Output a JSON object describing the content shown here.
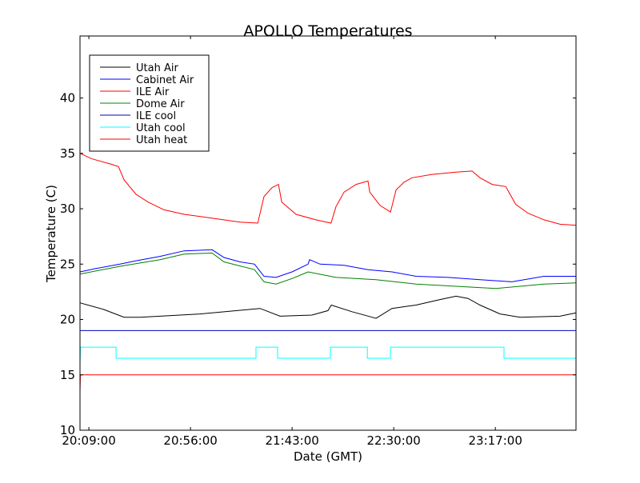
{
  "chart_data": {
    "type": "line",
    "title": "APOLLO Temperatures",
    "xlabel": "Date (GMT)",
    "ylabel": "Temperature (C)",
    "x_unit": "minutes since 20:09:00",
    "xlim": [
      -4.1,
      225.3
    ],
    "ylim": [
      10,
      45.6
    ],
    "xticks": [
      {
        "value": 0,
        "label": "20:09:00"
      },
      {
        "value": 47,
        "label": "20:56:00"
      },
      {
        "value": 94,
        "label": "21:43:00"
      },
      {
        "value": 141,
        "label": "22:30:00"
      },
      {
        "value": 188,
        "label": "23:17:00"
      }
    ],
    "yticks": [
      {
        "value": 10,
        "label": "10"
      },
      {
        "value": 15,
        "label": "15"
      },
      {
        "value": 20,
        "label": "20"
      },
      {
        "value": 25,
        "label": "25"
      },
      {
        "value": 30,
        "label": "30"
      },
      {
        "value": 35,
        "label": "35"
      },
      {
        "value": 40,
        "label": "40"
      }
    ],
    "grid": false,
    "legend_position": "top-left",
    "series": [
      {
        "name": "Utah Air",
        "color": "#000000",
        "points": [
          [
            -4.1,
            21.5
          ],
          [
            7,
            20.9
          ],
          [
            16.3,
            20.2
          ],
          [
            23.7,
            20.2
          ],
          [
            51.4,
            20.5
          ],
          [
            79.2,
            21.0
          ],
          [
            88.4,
            20.3
          ],
          [
            103.2,
            20.4
          ],
          [
            110.6,
            20.8
          ],
          [
            112.1,
            21.3
          ],
          [
            121.7,
            20.7
          ],
          [
            131,
            20.2
          ],
          [
            132.8,
            20.1
          ],
          [
            140.2,
            21.0
          ],
          [
            151.3,
            21.3
          ],
          [
            162.4,
            21.8
          ],
          [
            169.8,
            22.1
          ],
          [
            175.4,
            21.9
          ],
          [
            180.9,
            21.3
          ],
          [
            190.2,
            20.5
          ],
          [
            199.4,
            20.2
          ],
          [
            217.9,
            20.3
          ],
          [
            225.3,
            20.6
          ]
        ]
      },
      {
        "name": "Cabinet Air",
        "color": "#0000ff",
        "points": [
          [
            -4.1,
            24.3
          ],
          [
            3.3,
            24.6
          ],
          [
            14.4,
            25.0
          ],
          [
            21.8,
            25.3
          ],
          [
            32.9,
            25.7
          ],
          [
            44,
            26.2
          ],
          [
            57,
            26.3
          ],
          [
            62.5,
            25.6
          ],
          [
            69.9,
            25.2
          ],
          [
            76.6,
            25.0
          ],
          [
            81,
            23.9
          ],
          [
            86.6,
            23.8
          ],
          [
            94,
            24.3
          ],
          [
            101.4,
            25.0
          ],
          [
            102.1,
            25.4
          ],
          [
            106.9,
            25.0
          ],
          [
            118,
            24.9
          ],
          [
            129.1,
            24.5
          ],
          [
            140.2,
            24.3
          ],
          [
            151.3,
            23.9
          ],
          [
            166.1,
            23.8
          ],
          [
            180.9,
            23.6
          ],
          [
            195.7,
            23.4
          ],
          [
            210.5,
            23.9
          ],
          [
            225.3,
            23.9
          ]
        ]
      },
      {
        "name": "ILE Air",
        "color": "#ff0000",
        "points": [
          [
            -4.1,
            13.5
          ],
          [
            -3.9,
            15
          ],
          [
            225.3,
            15
          ]
        ]
      },
      {
        "name": "Dome Air",
        "color": "#008000",
        "points": [
          [
            -4.1,
            24.1
          ],
          [
            14.4,
            24.8
          ],
          [
            32.9,
            25.4
          ],
          [
            44,
            25.9
          ],
          [
            57,
            26.0
          ],
          [
            62.5,
            25.2
          ],
          [
            76.6,
            24.5
          ],
          [
            81,
            23.4
          ],
          [
            86.6,
            23.2
          ],
          [
            94,
            23.7
          ],
          [
            101.4,
            24.3
          ],
          [
            114.3,
            23.8
          ],
          [
            132.8,
            23.6
          ],
          [
            151.3,
            23.2
          ],
          [
            169.8,
            23.0
          ],
          [
            188.3,
            22.8
          ],
          [
            210.5,
            23.2
          ],
          [
            225.3,
            23.3
          ]
        ]
      },
      {
        "name": "ILE cool",
        "color": "#0000bf",
        "points": [
          [
            -4.1,
            19
          ],
          [
            225.3,
            19
          ]
        ]
      },
      {
        "name": "Utah cool",
        "color": "#00ffff",
        "points": [
          [
            -4.1,
            16
          ],
          [
            -3.9,
            17.5
          ],
          [
            12.6,
            17.5
          ],
          [
            12.6,
            16.5
          ],
          [
            77.3,
            16.5
          ],
          [
            77.3,
            17.5
          ],
          [
            87.3,
            17.5
          ],
          [
            87.3,
            16.5
          ],
          [
            111.7,
            16.5
          ],
          [
            111.7,
            17.5
          ],
          [
            128.8,
            17.5
          ],
          [
            128.8,
            16.5
          ],
          [
            139.5,
            16.5
          ],
          [
            139.5,
            17.5
          ],
          [
            192,
            17.5
          ],
          [
            192,
            16.5
          ],
          [
            225.3,
            16.5
          ]
        ]
      },
      {
        "name": "Utah heat",
        "color": "#ff0000",
        "points": [
          [
            -4.1,
            35
          ],
          [
            1.5,
            34.5
          ],
          [
            10.7,
            34
          ],
          [
            13.7,
            33.8
          ],
          [
            16.3,
            32.6
          ],
          [
            21.8,
            31.3
          ],
          [
            27.4,
            30.6
          ],
          [
            34.8,
            29.9
          ],
          [
            44,
            29.5
          ],
          [
            55.1,
            29.2
          ],
          [
            69.9,
            28.8
          ],
          [
            78.1,
            28.7
          ],
          [
            81,
            31.1
          ],
          [
            84.7,
            31.9
          ],
          [
            87.7,
            32.2
          ],
          [
            89.2,
            30.6
          ],
          [
            95.8,
            29.5
          ],
          [
            105,
            29.0
          ],
          [
            112,
            28.7
          ],
          [
            114.3,
            30.2
          ],
          [
            118,
            31.5
          ],
          [
            123.6,
            32.2
          ],
          [
            129.1,
            32.5
          ],
          [
            129.9,
            31.5
          ],
          [
            134.7,
            30.3
          ],
          [
            139.5,
            29.7
          ],
          [
            142.1,
            31.7
          ],
          [
            145.8,
            32.4
          ],
          [
            149.5,
            32.8
          ],
          [
            158.7,
            33.1
          ],
          [
            169.8,
            33.3
          ],
          [
            177.2,
            33.4
          ],
          [
            180.9,
            32.8
          ],
          [
            186.5,
            32.2
          ],
          [
            192.8,
            32.0
          ],
          [
            197.4,
            30.4
          ],
          [
            203.1,
            29.6
          ],
          [
            210.5,
            29.0
          ],
          [
            217.9,
            28.6
          ],
          [
            225.3,
            28.5
          ]
        ]
      }
    ]
  }
}
